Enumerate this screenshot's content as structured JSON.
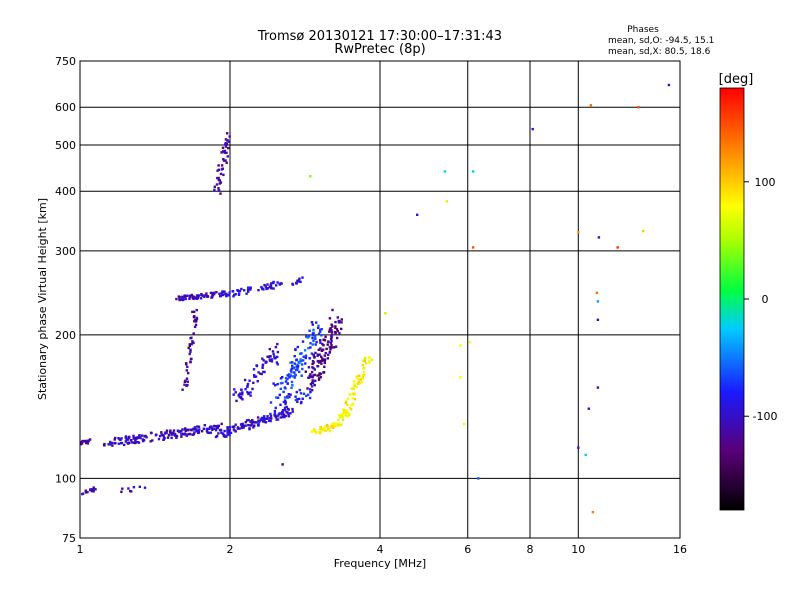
{
  "chart_data": {
    "type": "scatter",
    "title": "Tromsø 20130121 17:30:00–17:31:43",
    "subtitle": "RwPretec (8p)",
    "xlabel": "Frequency [MHz]",
    "ylabel": "Stationary phase Virtual Height [km]",
    "x_scale": "log",
    "y_scale": "log",
    "xlim": [
      1,
      16
    ],
    "ylim": [
      75,
      750
    ],
    "x_ticks": [
      "1",
      "2",
      "4",
      "6",
      "8",
      "10",
      "16"
    ],
    "x_tick_values": [
      1,
      2,
      4,
      6,
      8,
      10,
      16
    ],
    "y_ticks": [
      "75",
      "100",
      "200",
      "300",
      "400",
      "500",
      "600",
      "750"
    ],
    "y_tick_values": [
      75,
      100,
      200,
      300,
      400,
      500,
      600,
      750
    ],
    "grid": true,
    "colorbar": {
      "label": "[deg]",
      "range": [
        -180,
        180
      ],
      "ticks": [
        "100",
        "0",
        "-100"
      ],
      "tick_values": [
        100,
        0,
        -100
      ]
    },
    "stats": {
      "heading": "Phases",
      "line1": "mean, sd,O: -94.5, 15.1",
      "line2": "mean, sd,X:  80.5, 18.6"
    },
    "traces": [
      {
        "x": [
          1.0,
          1.05
        ],
        "y": [
          118,
          120
        ],
        "phase": -110,
        "spread_x": 0.01,
        "spread_y": 0.012,
        "count": 18
      },
      {
        "x": [
          1.12,
          1.9
        ],
        "y": [
          118,
          128
        ],
        "phase": -105,
        "spread_x": 0.02,
        "spread_y": 0.02,
        "count": 160
      },
      {
        "x": [
          1.9,
          2.65
        ],
        "y": [
          124,
          138
        ],
        "phase": -100,
        "spread_x": 0.02,
        "spread_y": 0.02,
        "count": 120
      },
      {
        "x": [
          2.4,
          2.9
        ],
        "y": [
          138,
          152
        ],
        "phase": -85,
        "spread_x": 0.03,
        "spread_y": 0.03,
        "count": 40
      },
      {
        "x": [
          1.0,
          1.08
        ],
        "y": [
          92,
          95
        ],
        "phase": -110,
        "spread_x": 0.01,
        "spread_y": 0.01,
        "count": 16
      },
      {
        "x": [
          1.2,
          1.35
        ],
        "y": [
          94,
          96
        ],
        "phase": -110,
        "spread_x": 0.015,
        "spread_y": 0.01,
        "count": 8
      },
      {
        "x": [
          1.55,
          1.98
        ],
        "y": [
          238,
          244
        ],
        "phase": -105,
        "spread_x": 0.015,
        "spread_y": 0.012,
        "count": 70
      },
      {
        "x": [
          1.98,
          2.8
        ],
        "y": [
          243,
          262
        ],
        "phase": -95,
        "spread_x": 0.015,
        "spread_y": 0.015,
        "count": 60
      },
      {
        "x": [
          1.62,
          1.72
        ],
        "y": [
          152,
          238
        ],
        "phase": -120,
        "spread_x": 0.012,
        "spread_y": 0.03,
        "count": 45
      },
      {
        "x": [
          1.88,
          1.98
        ],
        "y": [
          395,
          520
        ],
        "phase": -112,
        "spread_x": 0.012,
        "spread_y": 0.04,
        "count": 45
      },
      {
        "x": [
          2.05,
          2.5
        ],
        "y": [
          145,
          185
        ],
        "phase": -100,
        "spread_x": 0.03,
        "spread_y": 0.04,
        "count": 70
      },
      {
        "x": [
          2.5,
          3.0
        ],
        "y": [
          150,
          205
        ],
        "phase": -70,
        "spread_x": 0.03,
        "spread_y": 0.05,
        "count": 110
      },
      {
        "x": [
          2.9,
          3.3
        ],
        "y": [
          160,
          215
        ],
        "phase": -125,
        "spread_x": 0.03,
        "spread_y": 0.05,
        "count": 120
      },
      {
        "x": [
          2.95,
          3.35
        ],
        "y": [
          125,
          130
        ],
        "phase": 80,
        "spread_x": 0.02,
        "spread_y": 0.012,
        "count": 40
      },
      {
        "x": [
          3.35,
          3.8
        ],
        "y": [
          132,
          180
        ],
        "phase": 82,
        "spread_x": 0.02,
        "spread_y": 0.02,
        "count": 70
      }
    ],
    "points": [
      {
        "x": 2.55,
        "y": 107,
        "phase": -135
      },
      {
        "x": 2.9,
        "y": 430,
        "phase": 40
      },
      {
        "x": 4.1,
        "y": 222,
        "phase": 55
      },
      {
        "x": 4.75,
        "y": 357,
        "phase": -95
      },
      {
        "x": 5.4,
        "y": 440,
        "phase": -15
      },
      {
        "x": 5.45,
        "y": 381,
        "phase": 90
      },
      {
        "x": 5.8,
        "y": 190,
        "phase": 78
      },
      {
        "x": 5.8,
        "y": 163,
        "phase": 80
      },
      {
        "x": 5.9,
        "y": 130,
        "phase": 82
      },
      {
        "x": 6.05,
        "y": 193,
        "phase": 85
      },
      {
        "x": 6.15,
        "y": 440,
        "phase": -20
      },
      {
        "x": 6.15,
        "y": 305,
        "phase": 150
      },
      {
        "x": 6.3,
        "y": 100,
        "phase": -60
      },
      {
        "x": 8.1,
        "y": 540,
        "phase": -100
      },
      {
        "x": 10.0,
        "y": 328,
        "phase": 120
      },
      {
        "x": 10.0,
        "y": 116,
        "phase": -100
      },
      {
        "x": 10.35,
        "y": 112,
        "phase": -20
      },
      {
        "x": 10.5,
        "y": 140,
        "phase": -100
      },
      {
        "x": 10.6,
        "y": 606,
        "phase": 135
      },
      {
        "x": 10.7,
        "y": 85,
        "phase": 130
      },
      {
        "x": 10.9,
        "y": 245,
        "phase": 135
      },
      {
        "x": 10.95,
        "y": 235,
        "phase": -40
      },
      {
        "x": 10.95,
        "y": 215,
        "phase": -100
      },
      {
        "x": 10.95,
        "y": 155,
        "phase": -110
      },
      {
        "x": 11.0,
        "y": 320,
        "phase": -110
      },
      {
        "x": 12.0,
        "y": 305,
        "phase": 160
      },
      {
        "x": 13.2,
        "y": 600,
        "phase": 150
      },
      {
        "x": 13.5,
        "y": 330,
        "phase": 100
      },
      {
        "x": 15.2,
        "y": 668,
        "phase": -100
      }
    ]
  }
}
